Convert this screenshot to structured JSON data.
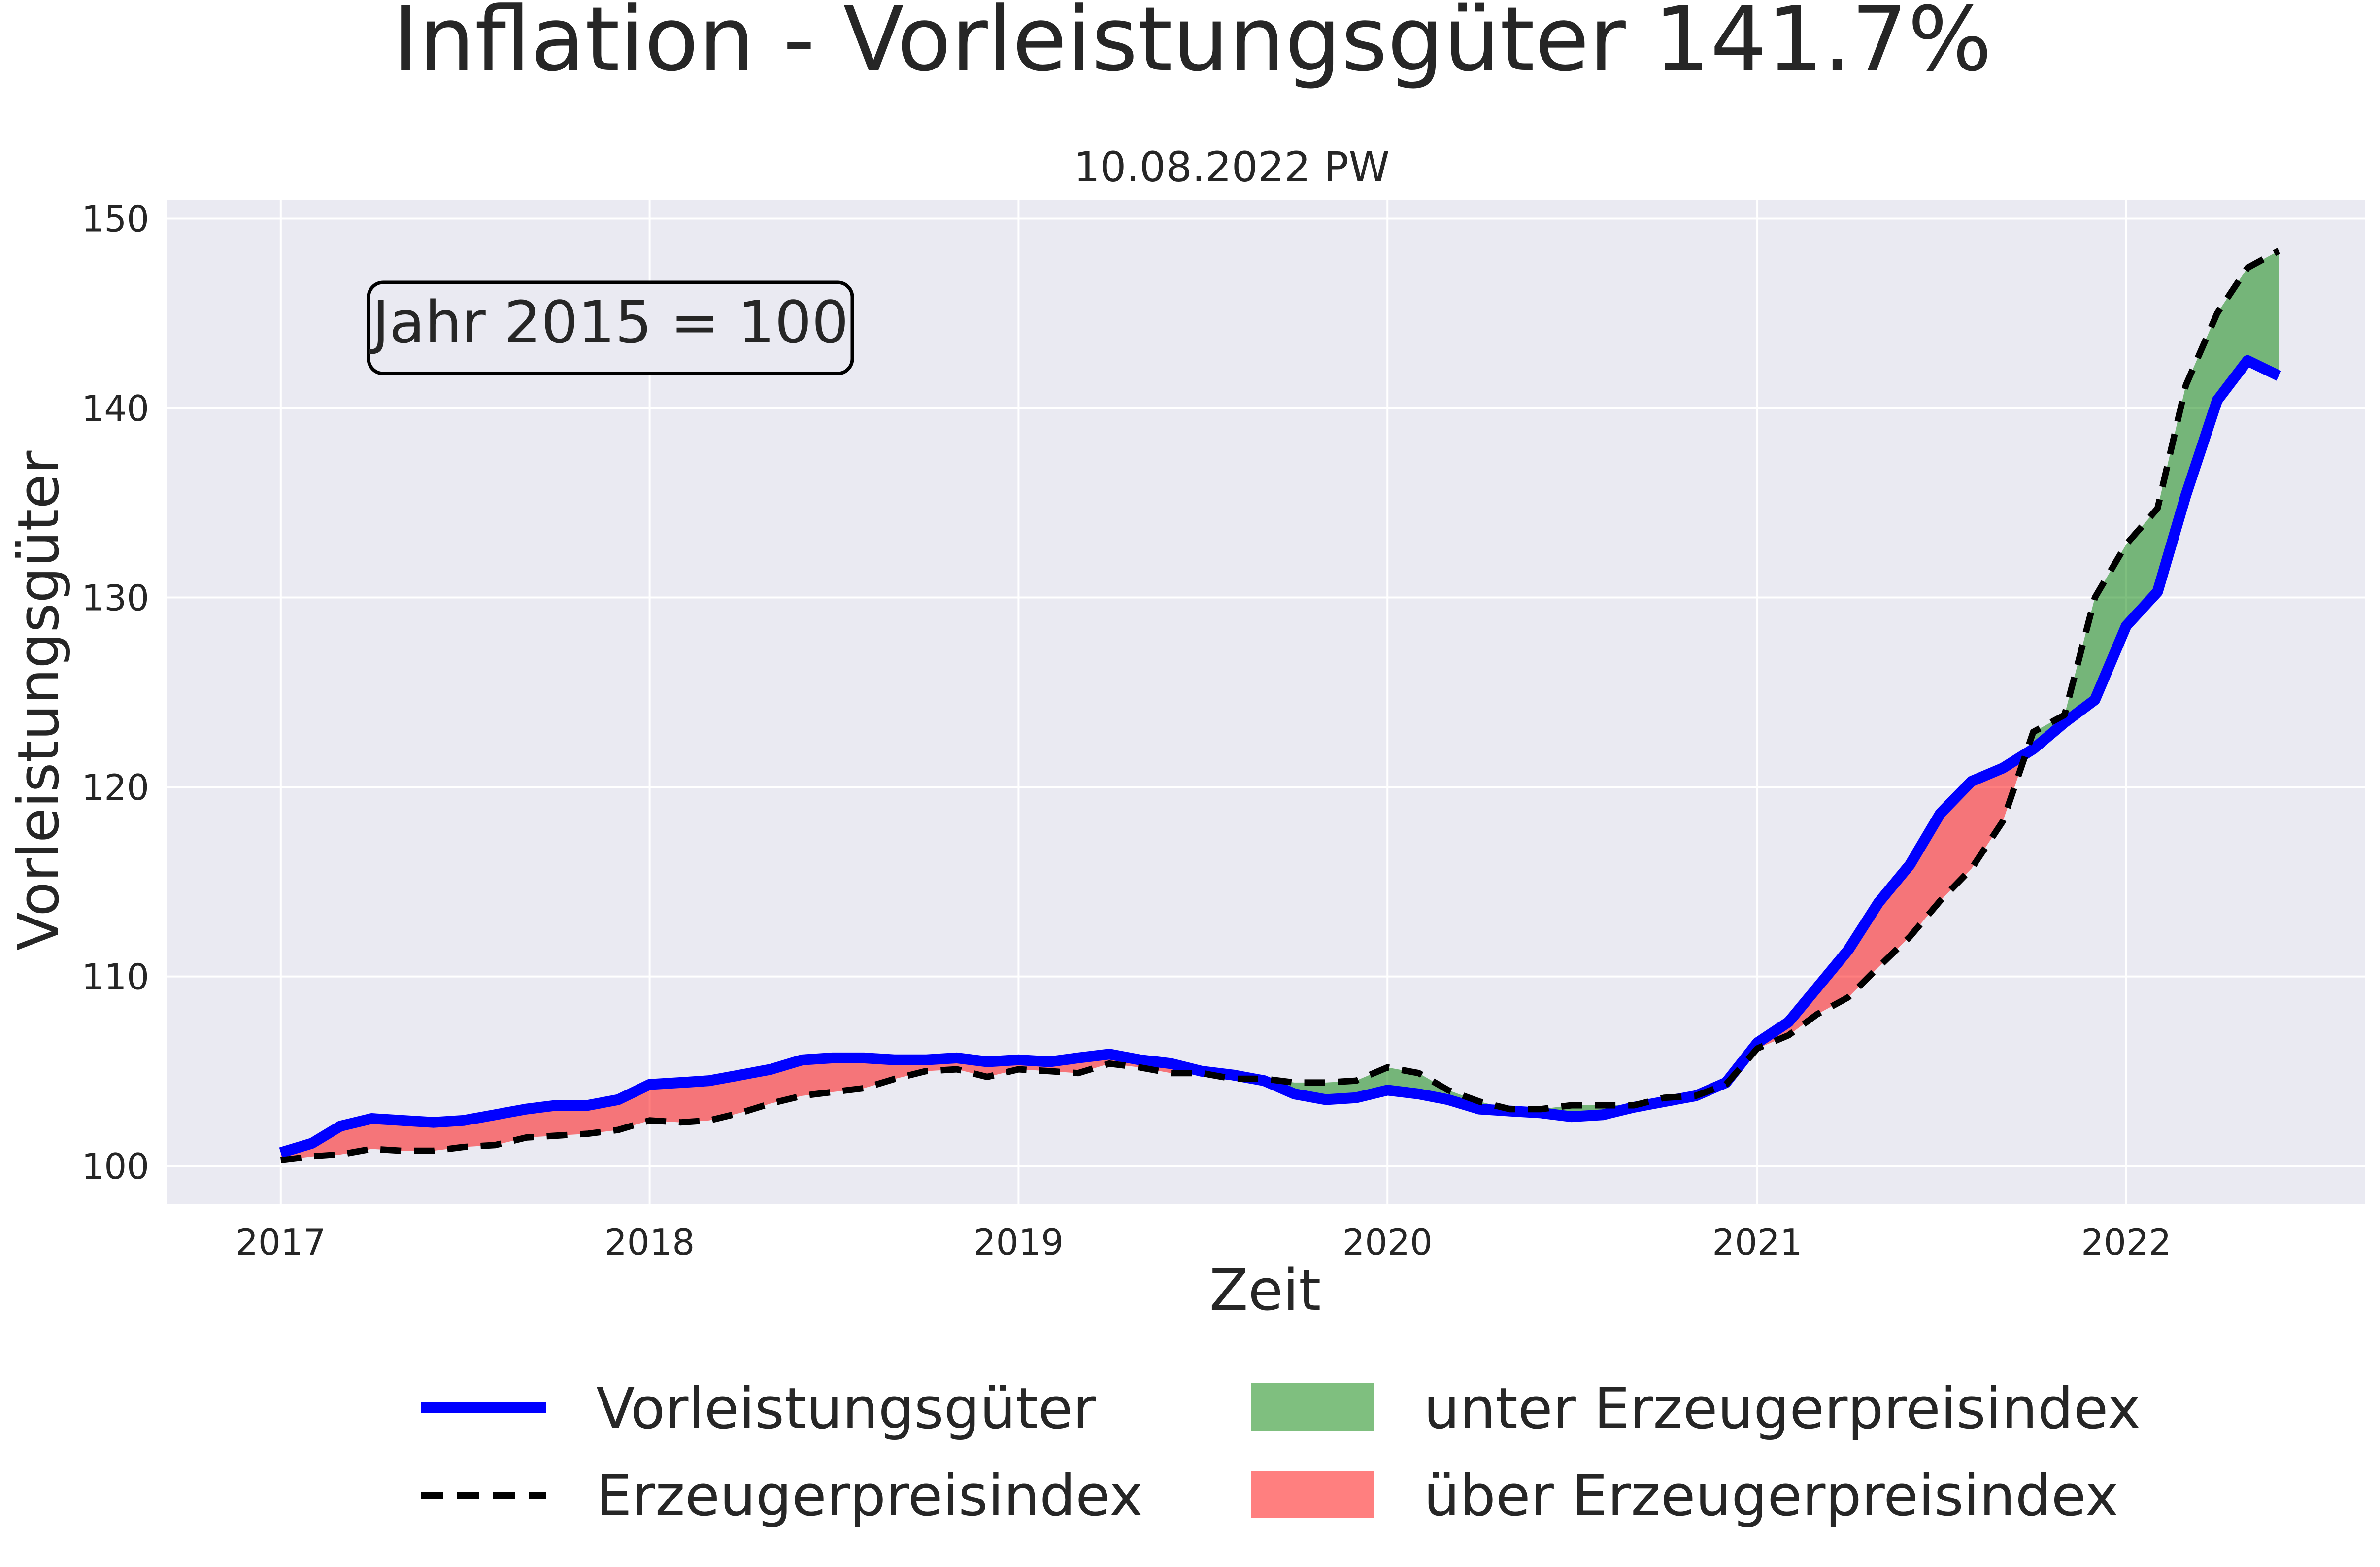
{
  "chart_data": {
    "type": "line",
    "title": "Inflation - Vorleistungsgüter 141.7%",
    "subtitle": "10.08.2022 PW",
    "xlabel": "Zeit",
    "ylabel": "Vorleistungsgüter",
    "annotation": "Jahr 2015 = 100",
    "xlim": [
      "2016-09-10",
      "2022-08-25"
    ],
    "ylim": [
      98,
      151
    ],
    "x_ticks": [
      "2017",
      "2018",
      "2019",
      "2020",
      "2021",
      "2022"
    ],
    "y_ticks": [
      "100",
      "110",
      "120",
      "130",
      "140",
      "150"
    ],
    "grid": true,
    "legend_position": "bottom",
    "dates": [
      "2017-01",
      "2017-02",
      "2017-03",
      "2017-04",
      "2017-05",
      "2017-06",
      "2017-07",
      "2017-08",
      "2017-09",
      "2017-10",
      "2017-11",
      "2017-12",
      "2018-01",
      "2018-02",
      "2018-03",
      "2018-04",
      "2018-05",
      "2018-06",
      "2018-07",
      "2018-08",
      "2018-09",
      "2018-10",
      "2018-11",
      "2018-12",
      "2019-01",
      "2019-02",
      "2019-03",
      "2019-04",
      "2019-05",
      "2019-06",
      "2019-07",
      "2019-08",
      "2019-09",
      "2019-10",
      "2019-11",
      "2019-12",
      "2020-01",
      "2020-02",
      "2020-03",
      "2020-04",
      "2020-05",
      "2020-06",
      "2020-07",
      "2020-08",
      "2020-09",
      "2020-10",
      "2020-11",
      "2020-12",
      "2021-01",
      "2021-02",
      "2021-03",
      "2021-04",
      "2021-05",
      "2021-06",
      "2021-07",
      "2021-08",
      "2021-09",
      "2021-10",
      "2021-11",
      "2021-12",
      "2022-01",
      "2022-02",
      "2022-03",
      "2022-04",
      "2022-05",
      "2022-06"
    ],
    "series": [
      {
        "name": "Vorleistungsgüter",
        "color": "#0000ff",
        "style": "solid",
        "values": [
          100.7,
          101.2,
          102.1,
          102.5,
          102.4,
          102.3,
          102.4,
          102.7,
          103.0,
          103.2,
          103.2,
          103.5,
          104.3,
          104.4,
          104.5,
          104.8,
          105.1,
          105.6,
          105.7,
          105.7,
          105.6,
          105.6,
          105.7,
          105.5,
          105.6,
          105.5,
          105.7,
          105.9,
          105.6,
          105.4,
          105.0,
          104.8,
          104.5,
          103.8,
          103.5,
          103.6,
          104.0,
          103.8,
          103.5,
          103.0,
          102.9,
          102.8,
          102.6,
          102.7,
          103.1,
          103.4,
          103.7,
          104.4,
          106.5,
          107.6,
          109.4,
          111.4,
          113.9,
          115.9,
          118.6,
          120.3,
          121.0,
          122.0,
          123.4,
          124.6,
          128.5,
          130.3,
          135.4,
          140.4,
          142.5,
          141.7
        ]
      },
      {
        "name": "Erzeugerpreisindex",
        "color": "#000000",
        "style": "dashed",
        "values": [
          100.3,
          100.5,
          100.6,
          100.9,
          100.8,
          100.8,
          101.0,
          101.1,
          101.5,
          101.6,
          101.7,
          101.9,
          102.4,
          102.3,
          102.4,
          102.8,
          103.3,
          103.7,
          103.9,
          104.1,
          104.6,
          105.0,
          105.1,
          104.7,
          105.1,
          105.0,
          104.9,
          105.4,
          105.2,
          104.9,
          104.9,
          104.6,
          104.6,
          104.4,
          104.4,
          104.5,
          105.2,
          104.9,
          104.0,
          103.4,
          103.0,
          103.0,
          103.2,
          103.2,
          103.2,
          103.6,
          103.7,
          104.3,
          106.2,
          106.9,
          108.0,
          108.9,
          110.5,
          112.1,
          114.0,
          115.7,
          118.2,
          122.9,
          123.8,
          130.0,
          132.8,
          134.7,
          141.2,
          145.0,
          147.4,
          148.3
        ]
      }
    ],
    "fills": [
      {
        "name": "unter Erzeugerpreisindex",
        "color": "#008000",
        "opacity": 0.5,
        "condition": "Vorleistungsgüter < Erzeugerpreisindex"
      },
      {
        "name": "über Erzeugerpreisindex",
        "color": "#ff0000",
        "opacity": 0.5,
        "condition": "Vorleistungsgüter > Erzeugerpreisindex"
      }
    ]
  },
  "colors": {
    "plot_background": "#eaeaf2",
    "grid": "#ffffff",
    "text": "#262626"
  }
}
